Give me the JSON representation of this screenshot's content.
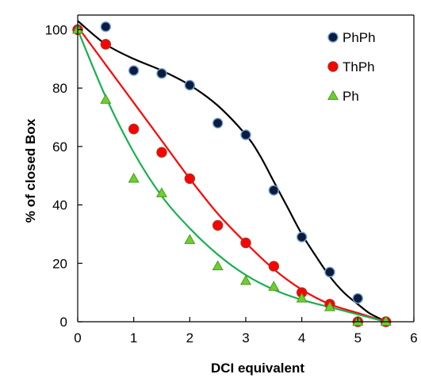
{
  "chart_data": {
    "type": "scatter",
    "title": "",
    "xlabel": "DCI equivalent",
    "ylabel": "% of closed Box",
    "xlim": [
      0,
      6
    ],
    "ylim": [
      0,
      105
    ],
    "x_ticks": [
      0,
      1,
      2,
      3,
      4,
      5,
      6
    ],
    "y_ticks": [
      0,
      20,
      40,
      60,
      80,
      100
    ],
    "grid": false,
    "legend_position": "top-right",
    "series": [
      {
        "name": "PhPh",
        "marker": "circle",
        "marker_color": "#0d1b3d",
        "marker_edge": "#6f9fd4",
        "fit_color": "#000000",
        "x": [
          0,
          0.5,
          1,
          1.5,
          2,
          2.5,
          3,
          3.5,
          4,
          4.5,
          5,
          5.5
        ],
        "y": [
          100,
          101,
          86,
          85,
          81,
          68,
          64,
          45,
          29,
          17,
          8,
          0
        ],
        "fit_x": [
          0,
          0.5,
          1,
          1.5,
          2,
          2.5,
          3,
          3.25,
          3.5,
          3.75,
          4,
          4.25,
          4.5,
          4.75,
          5,
          5.2,
          5.4,
          5.5
        ],
        "fit_y": [
          103,
          95,
          90,
          86,
          81,
          74,
          64,
          57,
          48,
          39,
          30,
          22.5,
          15.5,
          10,
          6,
          3,
          1,
          0
        ]
      },
      {
        "name": "ThPh",
        "marker": "circle",
        "marker_color": "#ff0000",
        "marker_edge": "#b03020",
        "fit_color": "#ff0000",
        "x": [
          0,
          0.5,
          1,
          1.5,
          2,
          2.5,
          3,
          3.5,
          4,
          4.5,
          5,
          5.5
        ],
        "y": [
          100,
          95,
          66,
          58,
          49,
          33,
          27,
          19,
          10,
          6,
          0,
          0
        ],
        "fit_x": [
          0,
          0.5,
          1,
          1.5,
          2,
          2.5,
          3,
          3.5,
          4,
          4.5,
          5,
          5.5
        ],
        "fit_y": [
          101,
          88,
          75,
          62,
          49,
          37,
          27,
          18,
          11,
          6,
          3,
          0
        ]
      },
      {
        "name": "Ph",
        "marker": "triangle",
        "marker_color": "#6ccf2e",
        "marker_edge": "#4c9a22",
        "fit_color": "#19b050",
        "x": [
          0,
          0.5,
          1,
          1.5,
          2,
          2.5,
          3,
          3.5,
          4,
          4.5,
          5,
          5.5
        ],
        "y": [
          100,
          76,
          49,
          44,
          28,
          19,
          14,
          12,
          8,
          5,
          0,
          0
        ],
        "fit_x": [
          0,
          0.5,
          1,
          1.5,
          2,
          2.5,
          3,
          3.5,
          4,
          4.5,
          5,
          5.5
        ],
        "fit_y": [
          100,
          77,
          58,
          43,
          32,
          23,
          16,
          11,
          7.5,
          5,
          2.5,
          0
        ]
      }
    ]
  }
}
